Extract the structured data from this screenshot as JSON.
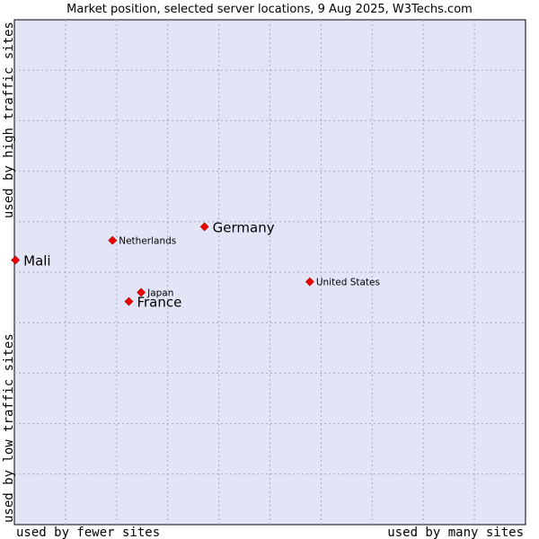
{
  "chart_data": {
    "type": "scatter",
    "title": "Market position, selected server locations, 9 Aug 2025, W3Techs.com",
    "xlabel_left": "used by fewer sites",
    "xlabel_right": "used by many sites",
    "ylabel_bottom": "used by low traffic sites",
    "ylabel_top": "used by high traffic sites",
    "xlim": [
      0,
      100
    ],
    "ylim": [
      0,
      100
    ],
    "grid": true,
    "background_color": "#e3e5f7",
    "point_color": "#ee0000",
    "points": [
      {
        "name": "Mali",
        "x": 0.2,
        "y": 52.4,
        "label_size": "large"
      },
      {
        "name": "Netherlands",
        "x": 19.2,
        "y": 56.3,
        "label_size": "small"
      },
      {
        "name": "Germany",
        "x": 37.2,
        "y": 59.0,
        "label_size": "large"
      },
      {
        "name": "Japan",
        "x": 24.8,
        "y": 46.0,
        "label_size": "small"
      },
      {
        "name": "France",
        "x": 22.4,
        "y": 44.2,
        "label_size": "large"
      },
      {
        "name": "United States",
        "x": 57.8,
        "y": 48.1,
        "label_size": "small"
      }
    ]
  }
}
